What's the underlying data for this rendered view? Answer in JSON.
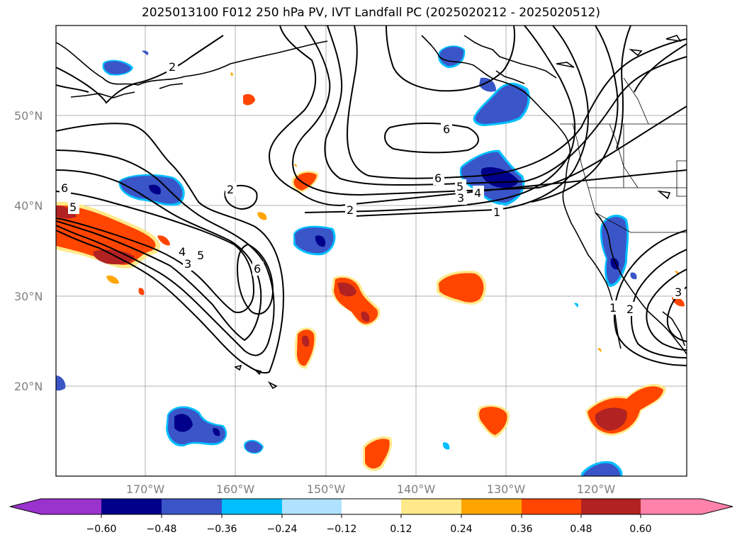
{
  "title": "2025013100 F012 250 hPa PV, IVT Landfall PC (2025020212 - 2025020512)",
  "map": {
    "lat_labels": [
      "50°N",
      "40°N",
      "30°N",
      "20°N"
    ],
    "lon_labels": [
      "170°W",
      "160°W",
      "150°W",
      "140°W",
      "130°W",
      "120°W"
    ],
    "contour_labels": [
      "2",
      "2",
      "6",
      "6",
      "5",
      "4",
      "3",
      "2",
      "1",
      "6",
      "5",
      "4",
      "3",
      "5",
      "6",
      "1",
      "2",
      "3"
    ]
  },
  "colorbar": {
    "ticks": [
      "−0.60",
      "−0.48",
      "−0.36",
      "−0.24",
      "−0.12",
      "0.12",
      "0.24",
      "0.36",
      "0.48",
      "0.60"
    ],
    "colors": [
      "#9a32cd",
      "#00008b",
      "#3a55c8",
      "#00bfff",
      "#b0e2ff",
      "#ffffff",
      "#ffe98a",
      "#ffa500",
      "#ff4500",
      "#b22222",
      "#ff82ab"
    ]
  }
}
